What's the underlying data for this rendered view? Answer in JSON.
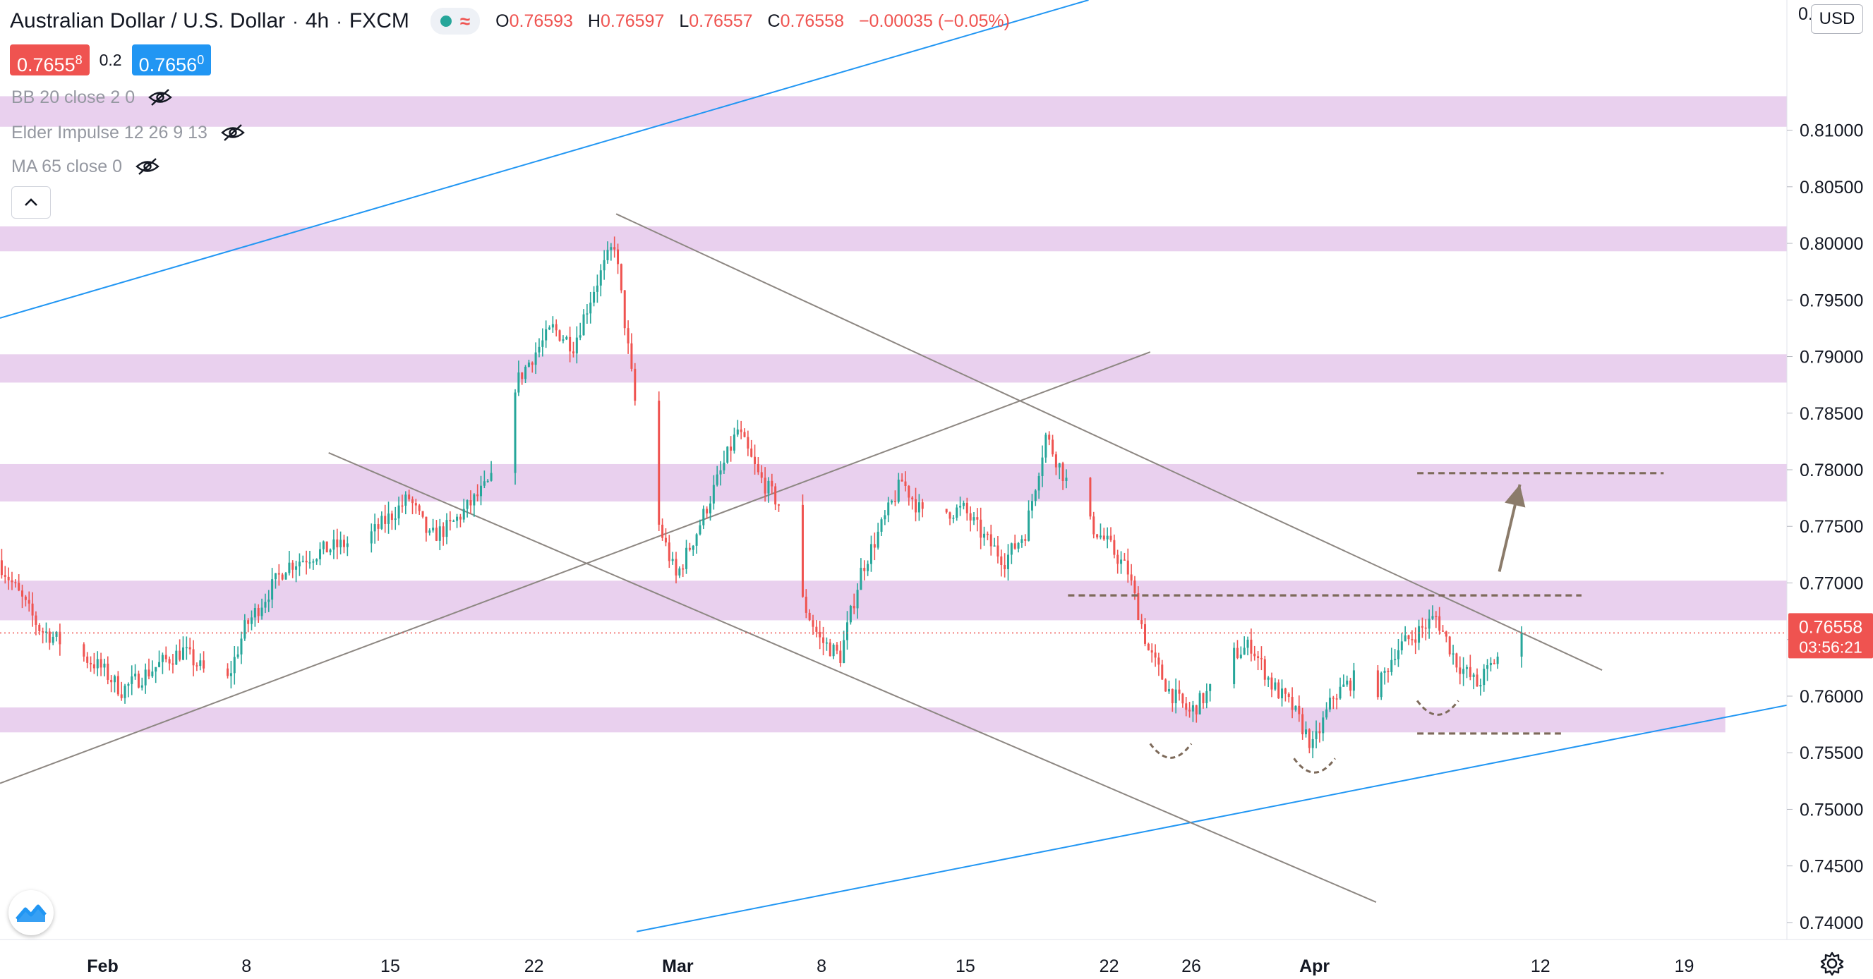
{
  "header": {
    "symbol": "Australian Dollar / U.S. Dollar",
    "interval": "4h",
    "exchange": "FXCM",
    "status_icons": [
      "market-open-dot-icon",
      "waves-icon"
    ],
    "ohlc": {
      "o_label": "O",
      "o": "0.76593",
      "h_label": "H",
      "h": "0.76597",
      "l_label": "L",
      "l": "0.76557",
      "c_label": "C",
      "c": "0.76558",
      "change": "−0.00035 (−0.05%)"
    }
  },
  "quote": {
    "sell": "0.7655",
    "sell_sup": "8",
    "spread": "0.2",
    "buy": "0.7656",
    "buy_sup": "0"
  },
  "indicators": [
    {
      "label": "BB 20 close 2 0",
      "icon": "eye-hidden-icon"
    },
    {
      "label": "Elder Impulse 12 26 9 13",
      "icon": "eye-hidden-icon"
    },
    {
      "label": "MA 65 close 0",
      "icon": "eye-hidden-icon"
    }
  ],
  "currency_label": "USD",
  "price_axis": {
    "top_label": "0.",
    "current_price": "0.76558",
    "countdown": "03:56:21"
  },
  "colors": {
    "up": "#26a69a",
    "down": "#ef5350",
    "zone": "#e1bee7",
    "trend_blue": "#2196f3",
    "trend_gray": "#8d8782",
    "dashed": "#7d6a5a",
    "arrow": "#8b7b6a"
  },
  "chart_data": {
    "type": "candlestick",
    "title": "Australian Dollar / U.S. Dollar",
    "interval": "4h",
    "y_axis": {
      "range": [
        0.7385,
        0.8215
      ],
      "ticks": [
        "0.81000",
        "0.80500",
        "0.80000",
        "0.79500",
        "0.79000",
        "0.78500",
        "0.78000",
        "0.77500",
        "0.77000",
        "0.76500",
        "0.76000",
        "0.75500",
        "0.75000",
        "0.74500",
        "0.74000"
      ],
      "tick_values": [
        0.81,
        0.805,
        0.8,
        0.795,
        0.79,
        0.785,
        0.78,
        0.775,
        0.77,
        0.765,
        0.76,
        0.755,
        0.75,
        0.745,
        0.74
      ]
    },
    "x_axis": {
      "start": "2021-01-27",
      "end": "2021-04-24",
      "tick_labels": [
        "Feb",
        "8",
        "15",
        "22",
        "Mar",
        "8",
        "15",
        "22",
        "26",
        "Apr",
        "12",
        "19"
      ],
      "tick_dates": [
        "2021-02-01",
        "2021-02-08",
        "2021-02-15",
        "2021-02-22",
        "2021-03-01",
        "2021-03-08",
        "2021-03-15",
        "2021-03-22",
        "2021-03-26",
        "2021-04-01",
        "2021-04-12",
        "2021-04-19"
      ]
    },
    "last_price": 0.76558,
    "price_path": [
      [
        "2021-01-27",
        0.772
      ],
      [
        "2021-01-29",
        0.766
      ],
      [
        "2021-02-01",
        0.7625
      ],
      [
        "2021-02-02",
        0.7605
      ],
      [
        "2021-02-04",
        0.763
      ],
      [
        "2021-02-05",
        0.764
      ],
      [
        "2021-02-07",
        0.7605
      ],
      [
        "2021-02-08",
        0.766
      ],
      [
        "2021-02-10",
        0.7715
      ],
      [
        "2021-02-12",
        0.773
      ],
      [
        "2021-02-14",
        0.774
      ],
      [
        "2021-02-16",
        0.7775
      ],
      [
        "2021-02-17",
        0.774
      ],
      [
        "2021-02-18",
        0.775
      ],
      [
        "2021-02-19",
        0.777
      ],
      [
        "2021-02-20",
        0.779
      ],
      [
        "2021-02-21",
        0.787
      ],
      [
        "2021-02-22",
        0.79
      ],
      [
        "2021-02-23",
        0.7925
      ],
      [
        "2021-02-24",
        0.791
      ],
      [
        "2021-02-25",
        0.796
      ],
      [
        "2021-02-26",
        0.8
      ],
      [
        "2021-02-27",
        0.786
      ],
      [
        "2021-02-28",
        0.776
      ],
      [
        "2021-03-01",
        0.7705
      ],
      [
        "2021-03-02",
        0.7745
      ],
      [
        "2021-03-03",
        0.779
      ],
      [
        "2021-03-04",
        0.7835
      ],
      [
        "2021-03-05",
        0.7795
      ],
      [
        "2021-03-06",
        0.777
      ],
      [
        "2021-03-07",
        0.769
      ],
      [
        "2021-03-08",
        0.765
      ],
      [
        "2021-03-09",
        0.7635
      ],
      [
        "2021-03-10",
        0.771
      ],
      [
        "2021-03-11",
        0.775
      ],
      [
        "2021-03-12",
        0.779
      ],
      [
        "2021-03-13",
        0.776
      ],
      [
        "2021-03-15",
        0.7765
      ],
      [
        "2021-03-16",
        0.774
      ],
      [
        "2021-03-17",
        0.772
      ],
      [
        "2021-03-18",
        0.7745
      ],
      [
        "2021-03-19",
        0.783
      ],
      [
        "2021-03-20",
        0.779
      ],
      [
        "2021-03-21",
        0.7755
      ],
      [
        "2021-03-22",
        0.7735
      ],
      [
        "2021-03-23",
        0.771
      ],
      [
        "2021-03-24",
        0.764
      ],
      [
        "2021-03-25",
        0.7605
      ],
      [
        "2021-03-26",
        0.7585
      ],
      [
        "2021-03-27",
        0.7605
      ],
      [
        "2021-03-28",
        0.7635
      ],
      [
        "2021-03-29",
        0.7645
      ],
      [
        "2021-03-30",
        0.761
      ],
      [
        "2021-03-31",
        0.759
      ],
      [
        "2021-04-01",
        0.7555
      ],
      [
        "2021-04-02",
        0.76
      ],
      [
        "2021-04-03",
        0.7615
      ],
      [
        "2021-04-04",
        0.76
      ],
      [
        "2021-04-05",
        0.764
      ],
      [
        "2021-04-06",
        0.7655
      ],
      [
        "2021-04-07",
        0.767
      ],
      [
        "2021-04-08",
        0.763
      ],
      [
        "2021-04-09",
        0.761
      ],
      [
        "2021-04-10",
        0.7635
      ],
      [
        "2021-04-11",
        0.76558
      ]
    ],
    "zones": [
      {
        "from": 0.8103,
        "to": 0.813,
        "x_start": "2021-01-27",
        "x_end": "2021-04-24"
      },
      {
        "from": 0.7993,
        "to": 0.8015,
        "x_start": "2021-01-27",
        "x_end": "2021-04-24"
      },
      {
        "from": 0.7877,
        "to": 0.7902,
        "x_start": "2021-01-27",
        "x_end": "2021-04-24"
      },
      {
        "from": 0.7772,
        "to": 0.7805,
        "x_start": "2021-01-27",
        "x_end": "2021-04-24"
      },
      {
        "from": 0.7667,
        "to": 0.7702,
        "x_start": "2021-01-27",
        "x_end": "2021-04-24"
      },
      {
        "from": 0.7568,
        "to": 0.759,
        "x_start": "2021-01-27",
        "x_end": "2021-04-21"
      }
    ],
    "trend_lines": [
      {
        "kind": "blue",
        "p1": [
          "2021-01-27",
          0.7934
        ],
        "p2": [
          "2021-03-21",
          0.8215
        ]
      },
      {
        "kind": "blue",
        "p1": [
          "2021-02-27",
          0.7392
        ],
        "p2": [
          "2021-04-24",
          0.7592
        ]
      },
      {
        "kind": "gray",
        "p1": [
          "2021-01-27",
          0.7523
        ],
        "p2": [
          "2021-03-24",
          0.7904
        ]
      },
      {
        "kind": "gray",
        "p1": [
          "2021-02-12",
          0.7815
        ],
        "p2": [
          "2021-04-04",
          0.7418
        ]
      },
      {
        "kind": "gray",
        "p1": [
          "2021-02-26",
          0.8026
        ],
        "p2": [
          "2021-04-15",
          0.7623
        ]
      }
    ],
    "dashed_lines": [
      {
        "y": 0.7797,
        "x_start": "2021-04-06",
        "x_end": "2021-04-18"
      },
      {
        "y": 0.7689,
        "x_start": "2021-03-20",
        "x_end": "2021-04-14"
      },
      {
        "y": 0.7567,
        "x_start": "2021-04-06",
        "x_end": "2021-04-13"
      }
    ],
    "arc_marks": [
      {
        "x_start": "2021-03-24",
        "x_end": "2021-03-26",
        "y": 0.7558
      },
      {
        "x_start": "2021-03-31",
        "x_end": "2021-04-02",
        "y": 0.7545
      },
      {
        "x_start": "2021-04-06",
        "x_end": "2021-04-08",
        "y": 0.7596
      }
    ],
    "arrow": {
      "from": [
        "2021-04-10",
        0.771
      ],
      "to": [
        "2021-04-11",
        0.7787
      ]
    }
  }
}
